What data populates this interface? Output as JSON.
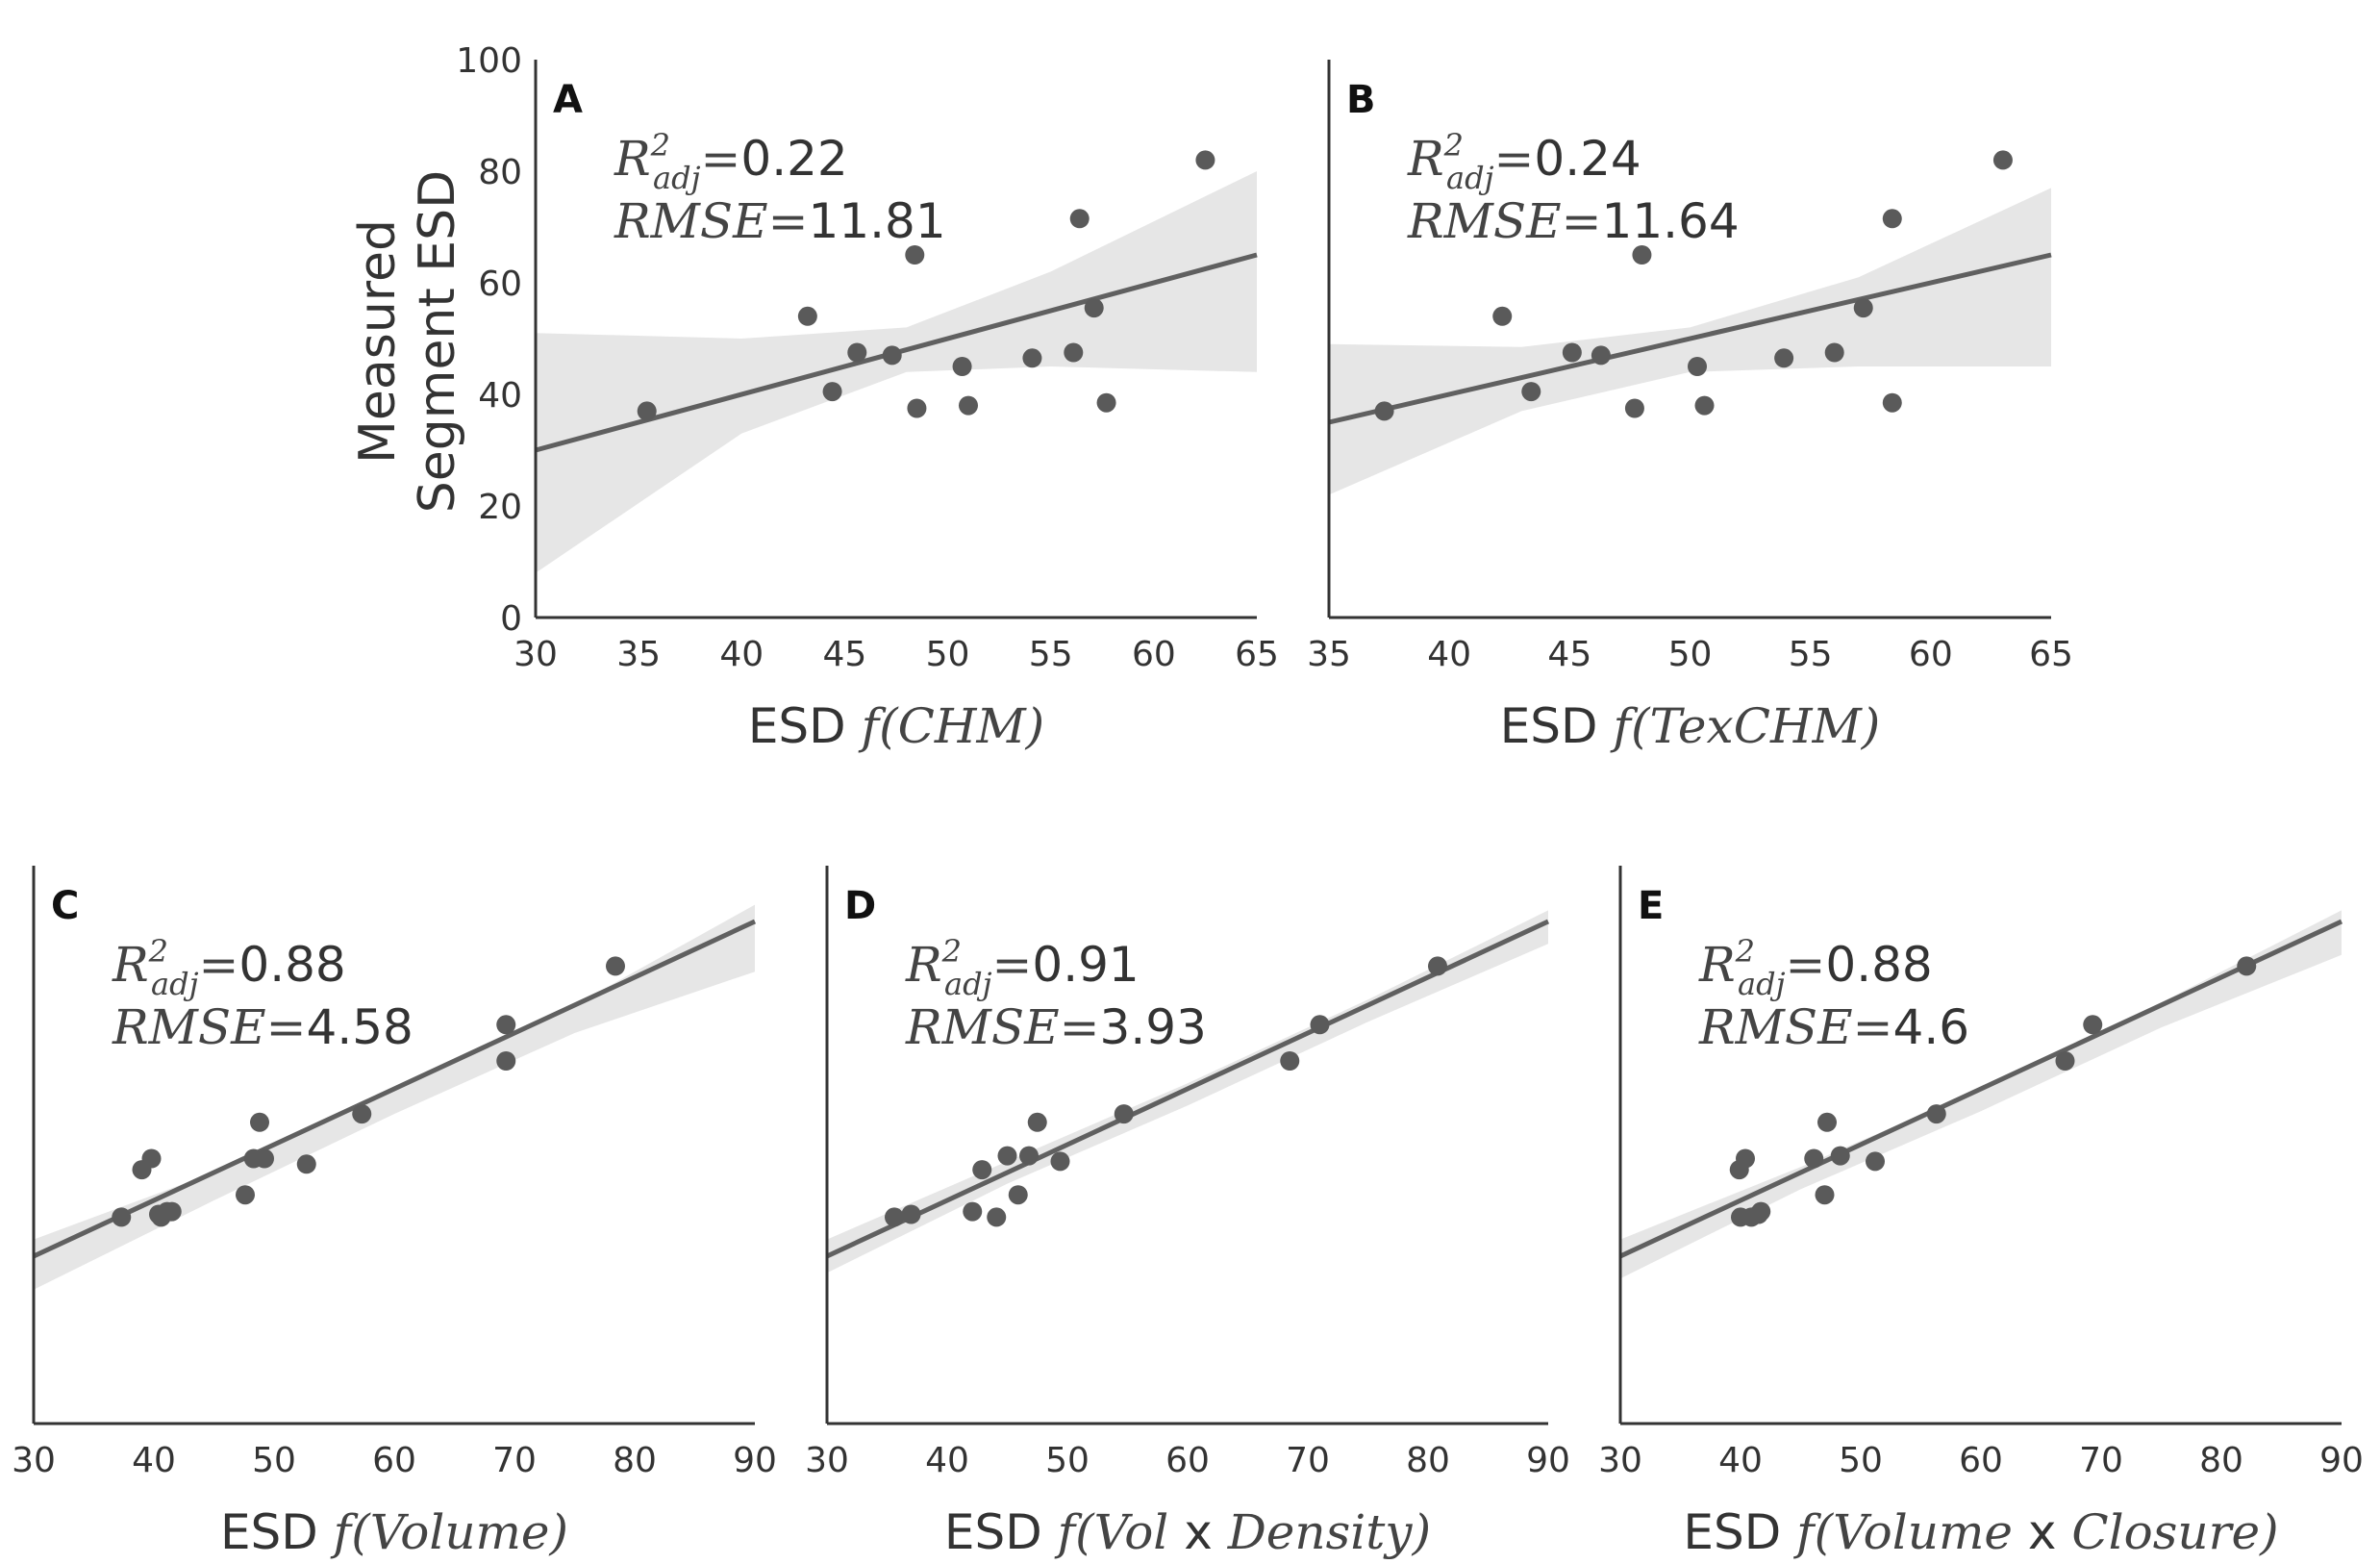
{
  "shared": {
    "ylabel_line1": "Measured",
    "ylabel_line2": "Segment ESD",
    "xlabel_prefix": "ESD",
    "r2_symbol": "R",
    "r2_sup": "2",
    "r2_sub": "adj",
    "rmse_label": "RMSE",
    "equals": "=",
    "f_symbol": "f",
    "times_symbol": "x",
    "colors": {
      "point": "#5a5a5a",
      "fit": "#606060",
      "ci": "#e6e6e6",
      "axis": "#333333"
    }
  },
  "chart_data": [
    {
      "type": "scatter",
      "panel": "A",
      "xlabel_parts": [
        {
          "t": "CHM",
          "m": true
        }
      ],
      "r2": "0.22",
      "rmse": "11.81",
      "xlim": [
        30,
        65
      ],
      "ylim": [
        0,
        100
      ],
      "xticks": [
        30,
        35,
        40,
        45,
        50,
        55,
        60,
        65
      ],
      "yticks": [
        0,
        20,
        40,
        60,
        80,
        100
      ],
      "show_yticks": true,
      "fit": {
        "x0": 30,
        "y0": 30,
        "x1": 65,
        "y1": 65
      },
      "ci": {
        "xs": [
          30,
          40,
          48,
          55,
          65
        ],
        "upper": [
          51,
          50,
          52,
          62,
          80
        ],
        "lower": [
          8,
          33,
          44,
          45,
          44
        ]
      },
      "points": [
        [
          35.4,
          37
        ],
        [
          43.2,
          54
        ],
        [
          44.4,
          40.5
        ],
        [
          45.6,
          47.5
        ],
        [
          47.3,
          47
        ],
        [
          48.4,
          65
        ],
        [
          48.5,
          37.5
        ],
        [
          50.7,
          45
        ],
        [
          51,
          38
        ],
        [
          54.1,
          46.5
        ],
        [
          56.1,
          47.5
        ],
        [
          56.4,
          71.5
        ],
        [
          57.1,
          55.5
        ],
        [
          57.7,
          38.5
        ],
        [
          62.5,
          82
        ]
      ]
    },
    {
      "type": "scatter",
      "panel": "B",
      "xlabel_parts": [
        {
          "t": "TexCHM",
          "m": true
        }
      ],
      "r2": "0.24",
      "rmse": "11.64",
      "xlim": [
        35,
        65
      ],
      "ylim": [
        0,
        100
      ],
      "xticks": [
        35,
        40,
        45,
        50,
        55,
        60,
        65
      ],
      "yticks": [
        0,
        20,
        40,
        60,
        80,
        100
      ],
      "show_yticks": false,
      "fit": {
        "x0": 35,
        "y0": 35,
        "x1": 65,
        "y1": 65
      },
      "ci": {
        "xs": [
          35,
          43,
          50,
          57,
          65
        ],
        "upper": [
          49,
          48.5,
          52,
          61,
          77
        ],
        "lower": [
          22,
          37,
          44,
          45,
          45
        ]
      },
      "points": [
        [
          37.3,
          37
        ],
        [
          42.2,
          54
        ],
        [
          43.4,
          40.5
        ],
        [
          45.1,
          47.5
        ],
        [
          46.3,
          47
        ],
        [
          47.7,
          37.5
        ],
        [
          48,
          65
        ],
        [
          50.3,
          45
        ],
        [
          50.6,
          38
        ],
        [
          53.9,
          46.5
        ],
        [
          56,
          47.5
        ],
        [
          57.2,
          55.5
        ],
        [
          58.4,
          71.5
        ],
        [
          58.4,
          38.5
        ],
        [
          63,
          82
        ]
      ]
    },
    {
      "type": "scatter",
      "panel": "C",
      "xlabel_parts": [
        {
          "t": "Volume",
          "m": true
        }
      ],
      "r2": "0.88",
      "rmse": "4.58",
      "xlim": [
        30,
        90
      ],
      "ylim": [
        0,
        100
      ],
      "xticks": [
        30,
        40,
        50,
        60,
        70,
        80,
        90
      ],
      "yticks": [],
      "show_yticks": false,
      "fit": {
        "x0": 30,
        "y0": 30,
        "x1": 90,
        "y1": 90
      },
      "ci": {
        "xs": [
          30,
          45,
          60,
          75,
          90
        ],
        "upper": [
          33,
          45,
          59.5,
          75,
          93
        ],
        "lower": [
          24,
          40,
          55.5,
          70,
          81
        ]
      },
      "points": [
        [
          37.3,
          37
        ],
        [
          39,
          45.5
        ],
        [
          39.8,
          47.5
        ],
        [
          40.4,
          37.5
        ],
        [
          40.6,
          37
        ],
        [
          41.1,
          38
        ],
        [
          41.5,
          38
        ],
        [
          47.6,
          41
        ],
        [
          48.3,
          47.5
        ],
        [
          48.8,
          54
        ],
        [
          49.2,
          47.5
        ],
        [
          52.7,
          46.5
        ],
        [
          57.3,
          55.5
        ],
        [
          69.3,
          71.5
        ],
        [
          69.3,
          65
        ],
        [
          78.4,
          82
        ]
      ]
    },
    {
      "type": "scatter",
      "panel": "D",
      "xlabel_parts": [
        {
          "t": "Vol",
          "m": true
        },
        {
          "t": " x ",
          "m": false
        },
        {
          "t": "Density",
          "m": true
        }
      ],
      "r2": "0.91",
      "rmse": "3.93",
      "xlim": [
        30,
        90
      ],
      "ylim": [
        0,
        100
      ],
      "xticks": [
        30,
        40,
        50,
        60,
        70,
        80,
        90
      ],
      "yticks": [],
      "show_yticks": false,
      "fit": {
        "x0": 30,
        "y0": 30,
        "x1": 90,
        "y1": 90
      },
      "ci": {
        "xs": [
          30,
          45,
          60,
          75,
          90
        ],
        "upper": [
          33,
          47,
          61,
          76,
          92
        ],
        "lower": [
          27,
          43,
          57,
          72,
          86
        ]
      },
      "points": [
        [
          35.6,
          37
        ],
        [
          37,
          37.5
        ],
        [
          42.1,
          38
        ],
        [
          42.9,
          45.5
        ],
        [
          44.1,
          37
        ],
        [
          45,
          48
        ],
        [
          45.9,
          41
        ],
        [
          46.8,
          48
        ],
        [
          47.5,
          54
        ],
        [
          49.4,
          47
        ],
        [
          54.7,
          55.5
        ],
        [
          68.5,
          65
        ],
        [
          71,
          71.5
        ],
        [
          80.8,
          82
        ]
      ]
    },
    {
      "type": "scatter",
      "panel": "E",
      "xlabel_parts": [
        {
          "t": "Volume",
          "m": true
        },
        {
          "t": " x ",
          "m": false
        },
        {
          "t": "Closure",
          "m": true
        }
      ],
      "r2": "0.88",
      "rmse": "4.6",
      "xlim": [
        30,
        90
      ],
      "ylim": [
        0,
        100
      ],
      "xticks": [
        30,
        40,
        50,
        60,
        70,
        80,
        90
      ],
      "yticks": [],
      "show_yticks": false,
      "fit": {
        "x0": 30,
        "y0": 30,
        "x1": 90,
        "y1": 90
      },
      "ci": {
        "xs": [
          30,
          45,
          60,
          75,
          90
        ],
        "upper": [
          33,
          46,
          60,
          75.5,
          92
        ],
        "lower": [
          26,
          42,
          56,
          71,
          84
        ]
      },
      "points": [
        [
          39.9,
          45.5
        ],
        [
          40,
          37
        ],
        [
          40.4,
          47.5
        ],
        [
          40.9,
          37
        ],
        [
          41.5,
          37.5
        ],
        [
          41.7,
          38
        ],
        [
          46.1,
          47.5
        ],
        [
          47,
          41
        ],
        [
          47.2,
          54
        ],
        [
          48.3,
          48
        ],
        [
          51.2,
          47
        ],
        [
          56.3,
          55.5
        ],
        [
          67,
          65
        ],
        [
          69.3,
          71.5
        ],
        [
          82.1,
          82
        ]
      ]
    }
  ]
}
